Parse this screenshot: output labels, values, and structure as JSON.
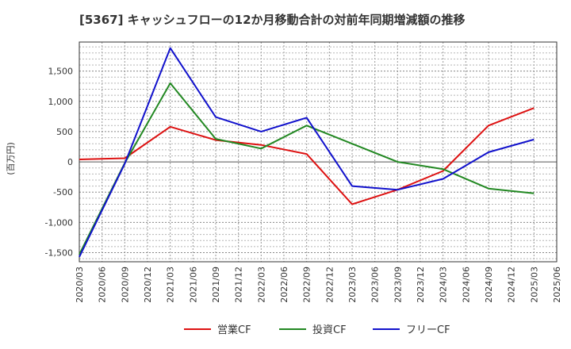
{
  "chart_data": {
    "type": "line",
    "title": "[5367]  キャッシュフローの12か月移動合計の対前年同期増減額の推移",
    "ylabel": "(百万円)",
    "xlabel": "",
    "ylim": [
      -1650,
      1980
    ],
    "y_ticks": [
      -1500,
      -1000,
      -500,
      0,
      500,
      1000,
      1500
    ],
    "y_tick_labels": [
      "-1,500",
      "-1,000",
      "-500",
      "0",
      "500",
      "1,000",
      "1,500"
    ],
    "x_labels": [
      "2020/03",
      "2020/06",
      "2020/09",
      "2020/12",
      "2021/03",
      "2021/06",
      "2021/09",
      "2021/12",
      "2022/03",
      "2022/06",
      "2022/09",
      "2022/12",
      "2023/03",
      "2023/06",
      "2023/09",
      "2023/12",
      "2024/03",
      "2024/06",
      "2024/09",
      "2024/12",
      "2025/03",
      "2025/06"
    ],
    "grid": true,
    "legend_position": "bottom",
    "series": [
      {
        "name": "営業CF",
        "color": "#dd1111",
        "x_index": [
          0,
          2,
          4,
          6,
          8,
          10,
          12,
          14,
          16,
          18,
          20
        ],
        "values": [
          40,
          60,
          580,
          360,
          280,
          130,
          -700,
          -460,
          -150,
          600,
          890
        ]
      },
      {
        "name": "投資CF",
        "color": "#228822",
        "x_index": [
          0,
          2,
          4,
          6,
          8,
          10,
          12,
          14,
          16,
          18,
          20
        ],
        "values": [
          -1530,
          -20,
          1300,
          380,
          220,
          600,
          300,
          0,
          -120,
          -440,
          -520
        ]
      },
      {
        "name": "フリーCF",
        "color": "#1111cc",
        "x_index": [
          0,
          2,
          4,
          6,
          8,
          10,
          12,
          14,
          16,
          18,
          20
        ],
        "values": [
          -1570,
          -30,
          1880,
          740,
          500,
          730,
          -400,
          -460,
          -280,
          160,
          370
        ]
      }
    ]
  }
}
